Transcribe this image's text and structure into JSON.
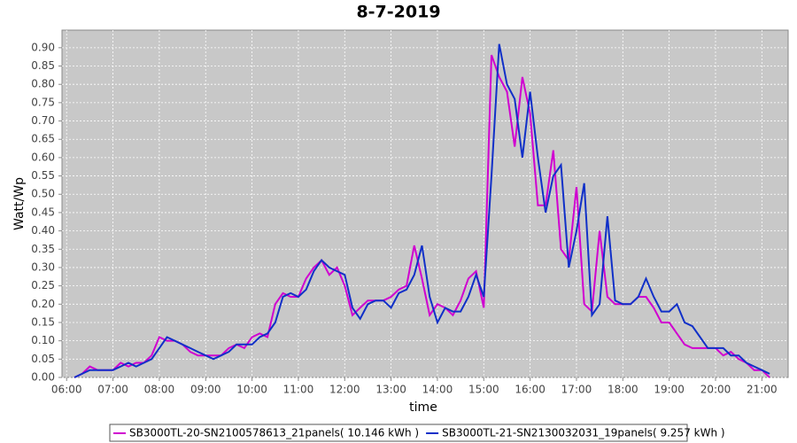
{
  "chart_data": {
    "type": "line",
    "title": "8-7-2019",
    "x_label": "time",
    "y_label": "Watt/Wp",
    "x": [
      "06:10",
      "06:20",
      "06:30",
      "06:40",
      "06:50",
      "07:00",
      "07:10",
      "07:20",
      "07:30",
      "07:40",
      "07:50",
      "08:00",
      "08:10",
      "08:20",
      "08:30",
      "08:40",
      "08:50",
      "09:00",
      "09:10",
      "09:20",
      "09:30",
      "09:40",
      "09:50",
      "10:00",
      "10:10",
      "10:20",
      "10:30",
      "10:40",
      "10:50",
      "11:00",
      "11:10",
      "11:20",
      "11:30",
      "11:40",
      "11:50",
      "12:00",
      "12:10",
      "12:20",
      "12:30",
      "12:40",
      "12:50",
      "13:00",
      "13:10",
      "13:20",
      "13:30",
      "13:40",
      "13:50",
      "14:00",
      "14:10",
      "14:20",
      "14:30",
      "14:40",
      "14:50",
      "15:00",
      "15:10",
      "15:20",
      "15:30",
      "15:40",
      "15:50",
      "16:00",
      "16:10",
      "16:20",
      "16:30",
      "16:40",
      "16:50",
      "17:00",
      "17:10",
      "17:20",
      "17:30",
      "17:40",
      "17:50",
      "18:00",
      "18:10",
      "18:20",
      "18:30",
      "18:40",
      "18:50",
      "19:00",
      "19:10",
      "19:20",
      "19:30",
      "19:40",
      "19:50",
      "20:00",
      "20:10",
      "20:20",
      "20:30",
      "20:40",
      "20:50",
      "21:00",
      "21:10"
    ],
    "series": [
      {
        "name": "SB3000TL-20-SN2100578613_21panels( 10.146 kWh )",
        "color": "#d000d0",
        "values": [
          0.0,
          0.01,
          0.03,
          0.02,
          0.02,
          0.02,
          0.04,
          0.03,
          0.04,
          0.04,
          0.06,
          0.11,
          0.1,
          0.1,
          0.09,
          0.07,
          0.06,
          0.06,
          0.06,
          0.06,
          0.08,
          0.09,
          0.08,
          0.11,
          0.12,
          0.11,
          0.2,
          0.23,
          0.22,
          0.22,
          0.27,
          0.3,
          0.32,
          0.28,
          0.3,
          0.25,
          0.17,
          0.19,
          0.21,
          0.21,
          0.21,
          0.22,
          0.24,
          0.25,
          0.36,
          0.27,
          0.17,
          0.2,
          0.19,
          0.17,
          0.21,
          0.27,
          0.29,
          0.19,
          0.88,
          0.82,
          0.78,
          0.63,
          0.82,
          0.72,
          0.47,
          0.47,
          0.62,
          0.35,
          0.32,
          0.52,
          0.2,
          0.18,
          0.4,
          0.22,
          0.2,
          0.2,
          0.2,
          0.22,
          0.22,
          0.19,
          0.15,
          0.15,
          0.12,
          0.09,
          0.08,
          0.08,
          0.08,
          0.08,
          0.06,
          0.07,
          0.05,
          0.04,
          0.02,
          0.02,
          0.0
        ]
      },
      {
        "name": "SB3000TL-21-SN2130032031_19panels( 9.257 kWh )",
        "color": "#1030c8",
        "values": [
          0.0,
          0.01,
          0.02,
          0.02,
          0.02,
          0.02,
          0.03,
          0.04,
          0.03,
          0.04,
          0.05,
          0.08,
          0.11,
          0.1,
          0.09,
          0.08,
          0.07,
          0.06,
          0.05,
          0.06,
          0.07,
          0.09,
          0.09,
          0.09,
          0.11,
          0.12,
          0.15,
          0.22,
          0.23,
          0.22,
          0.24,
          0.29,
          0.32,
          0.3,
          0.29,
          0.28,
          0.19,
          0.16,
          0.2,
          0.21,
          0.21,
          0.19,
          0.23,
          0.24,
          0.28,
          0.36,
          0.22,
          0.15,
          0.19,
          0.18,
          0.18,
          0.22,
          0.28,
          0.22,
          0.55,
          0.91,
          0.8,
          0.76,
          0.6,
          0.78,
          0.6,
          0.45,
          0.55,
          0.58,
          0.3,
          0.4,
          0.53,
          0.17,
          0.2,
          0.44,
          0.21,
          0.2,
          0.2,
          0.22,
          0.27,
          0.22,
          0.18,
          0.18,
          0.2,
          0.15,
          0.14,
          0.11,
          0.08,
          0.08,
          0.08,
          0.06,
          0.06,
          0.04,
          0.03,
          0.02,
          0.01
        ]
      }
    ],
    "xlim": [
      "05:54",
      "21:34"
    ],
    "xticks": [
      "06:00",
      "07:00",
      "08:00",
      "09:00",
      "10:00",
      "11:00",
      "12:00",
      "13:00",
      "14:00",
      "15:00",
      "16:00",
      "17:00",
      "18:00",
      "19:00",
      "20:00",
      "21:00"
    ],
    "ylim": [
      0,
      0.948
    ],
    "yticks": [
      {
        "value": 0,
        "label": "0.00"
      },
      {
        "value": 0.05,
        "label": "0.05"
      },
      {
        "value": 0.1,
        "label": "0.10"
      },
      {
        "value": 0.15,
        "label": "0.15"
      },
      {
        "value": 0.2,
        "label": "0.20"
      },
      {
        "value": 0.25,
        "label": "0.25"
      },
      {
        "value": 0.3,
        "label": "0.30"
      },
      {
        "value": 0.35,
        "label": "0.35"
      },
      {
        "value": 0.4,
        "label": "0.40"
      },
      {
        "value": 0.45,
        "label": "0.45"
      },
      {
        "value": 0.5,
        "label": "0.50"
      },
      {
        "value": 0.55,
        "label": "0.55"
      },
      {
        "value": 0.6,
        "label": "0.60"
      },
      {
        "value": 0.65,
        "label": "0.65"
      },
      {
        "value": 0.7,
        "label": "0.70"
      },
      {
        "value": 0.75,
        "label": "0.75"
      },
      {
        "value": 0.8,
        "label": "0.80"
      },
      {
        "value": 0.85,
        "label": "0.85"
      },
      {
        "value": 0.9,
        "label": "0.90"
      }
    ],
    "grid": true,
    "legend": "bottom"
  }
}
